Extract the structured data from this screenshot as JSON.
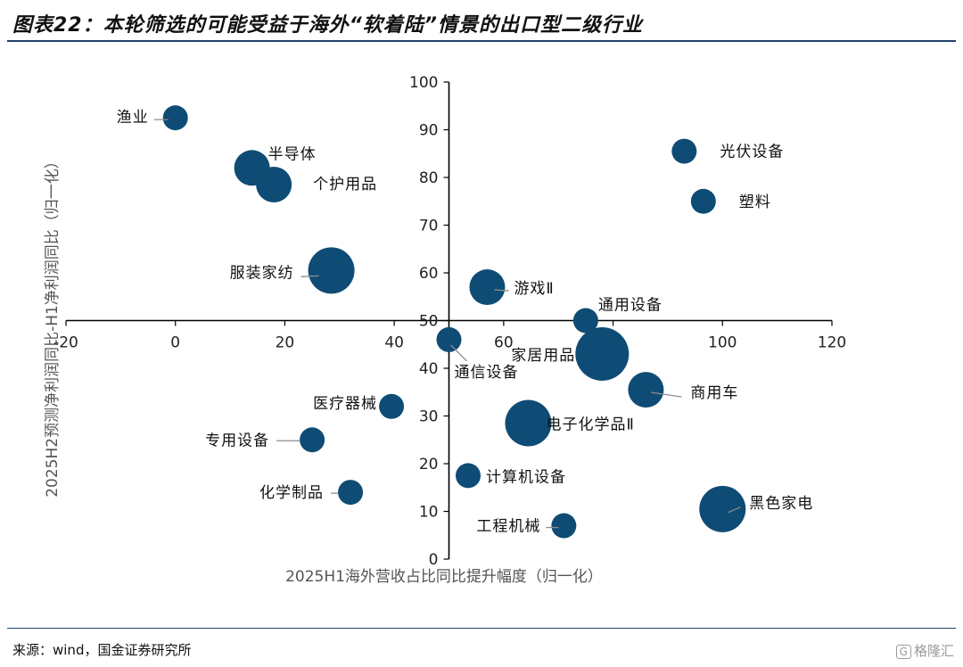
{
  "header": {
    "title": "图表22：本轮筛选的可能受益于海外“软着陆”情景的出口型二级行业"
  },
  "footer": {
    "source": "来源：wind，国金证券研究所",
    "watermark_badge": "G",
    "watermark_text": "格隆汇"
  },
  "colors": {
    "bubble": "#0f4c75",
    "axis": "#000000",
    "leader": "#8c8c8c",
    "rule": "#1f3f6a"
  },
  "chart_data": {
    "type": "scatter",
    "xlabel": "2025H1海外营收占比同比提升幅度（归一化）",
    "ylabel": "2025H2预测净利润同比-H1净利润同比（归一化）",
    "xlim": [
      -20,
      120
    ],
    "ylim": [
      0,
      100
    ],
    "x_ticks": [
      "-20",
      "0",
      "20",
      "40",
      "60",
      "80",
      "100",
      "120"
    ],
    "y_ticks": [
      "0",
      "10",
      "20",
      "30",
      "40",
      "50",
      "60",
      "70",
      "80",
      "90",
      "100"
    ],
    "points": [
      {
        "name": "渔业",
        "x": 0,
        "y": 92.5,
        "size": "small"
      },
      {
        "name": "半导体",
        "x": 14,
        "y": 82,
        "size": "medium"
      },
      {
        "name": "个护用品",
        "x": 18,
        "y": 78.5,
        "size": "medium"
      },
      {
        "name": "服装家纺",
        "x": 28.5,
        "y": 60.5,
        "size": "large"
      },
      {
        "name": "游戏Ⅱ",
        "x": 57,
        "y": 57,
        "size": "medium"
      },
      {
        "name": "通用设备",
        "x": 75,
        "y": 50,
        "size": "small"
      },
      {
        "name": "光伏设备",
        "x": 93,
        "y": 85.5,
        "size": "small"
      },
      {
        "name": "塑料",
        "x": 96.5,
        "y": 75,
        "size": "small"
      },
      {
        "name": "通信设备",
        "x": 50,
        "y": 46,
        "size": "small"
      },
      {
        "name": "家居用品",
        "x": 78,
        "y": 43,
        "size": "xlarge"
      },
      {
        "name": "商用车",
        "x": 86,
        "y": 35.5,
        "size": "medium"
      },
      {
        "name": "医疗器械",
        "x": 39.5,
        "y": 32,
        "size": "small"
      },
      {
        "name": "电子化学品Ⅱ",
        "x": 64.5,
        "y": 28.5,
        "size": "large"
      },
      {
        "name": "专用设备",
        "x": 25,
        "y": 25,
        "size": "small"
      },
      {
        "name": "计算机设备",
        "x": 53.5,
        "y": 17.5,
        "size": "small"
      },
      {
        "name": "化学制品",
        "x": 32,
        "y": 14,
        "size": "small"
      },
      {
        "name": "黑色家电",
        "x": 100,
        "y": 10.5,
        "size": "large"
      },
      {
        "name": "工程机械",
        "x": 71,
        "y": 7,
        "size": "small"
      }
    ]
  }
}
